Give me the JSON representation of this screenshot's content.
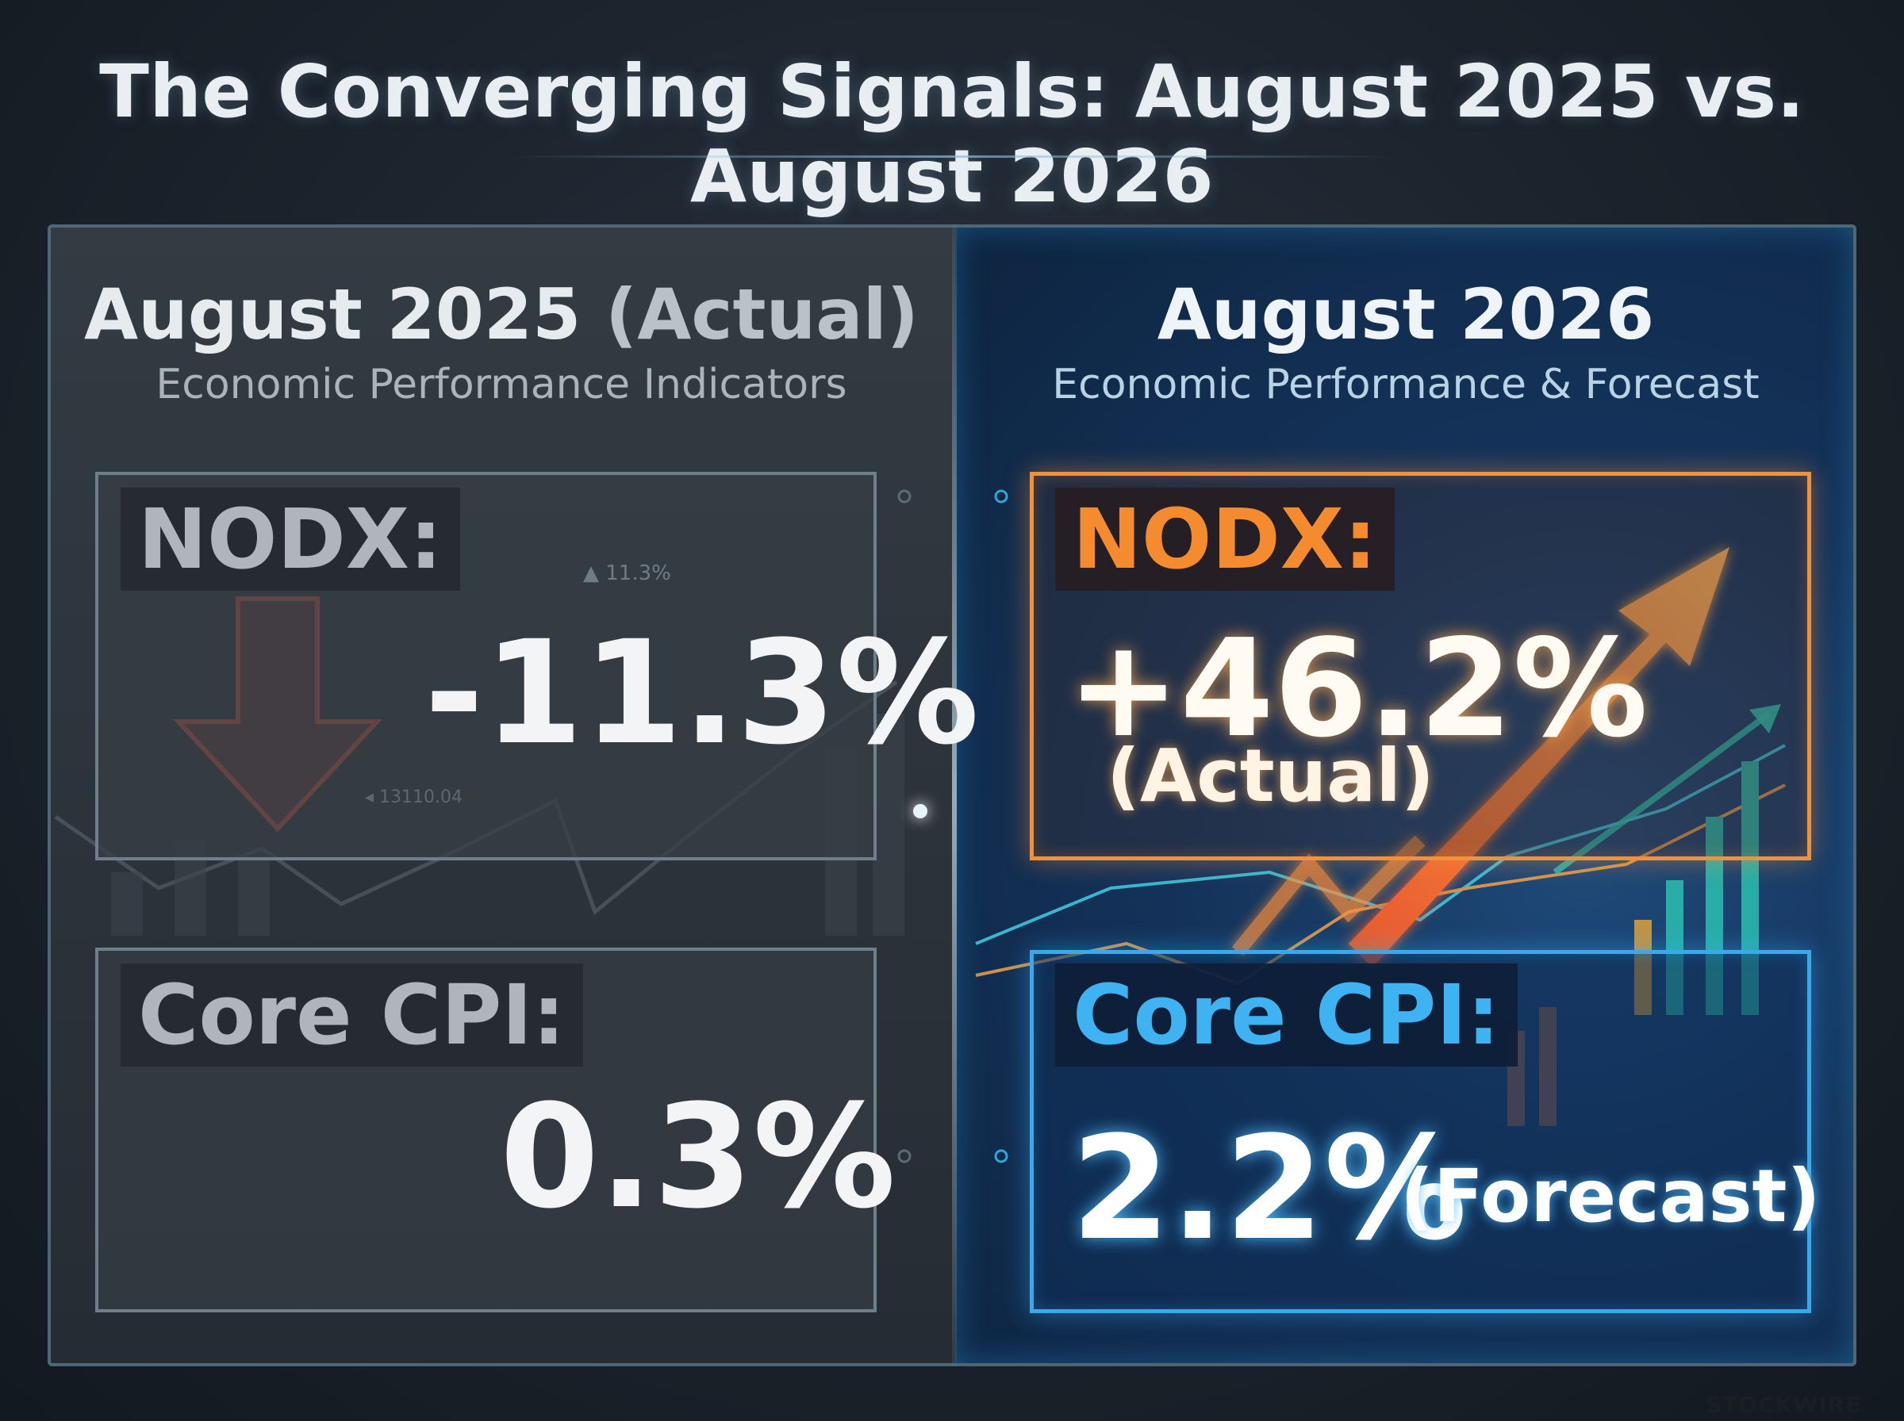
{
  "title": "The Converging Signals: August 2025 vs. August 2026",
  "left": {
    "heading_main": "August 2025 ",
    "heading_tag": "(Actual)",
    "subtitle": "Economic Performance Indicators",
    "nodx": {
      "label": "NODX:",
      "value": "-11.3%",
      "arrow": "down-arrow-icon"
    },
    "core_cpi": {
      "label": "Core CPI:",
      "value": "0.3%"
    },
    "background_annotations": [
      "▲ 11.3%",
      "◂ 13110.04"
    ]
  },
  "right": {
    "heading": "August 2026",
    "subtitle": "Economic Performance & Forecast",
    "nodx": {
      "label": "NODX:",
      "value": "+46.2%",
      "note": "(Actual)",
      "arrow": "up-arrow-icon"
    },
    "core_cpi": {
      "label": "Core CPI:",
      "value": "2.2%",
      "note": "(Forecast)"
    }
  },
  "watermark": "STOCKWIRE",
  "colors": {
    "left_accent": "#6f7f8a",
    "nodx_orange": "#f48b2f",
    "cpi_blue": "#3fb3f2",
    "down_arrow_red": "#e2553f"
  }
}
